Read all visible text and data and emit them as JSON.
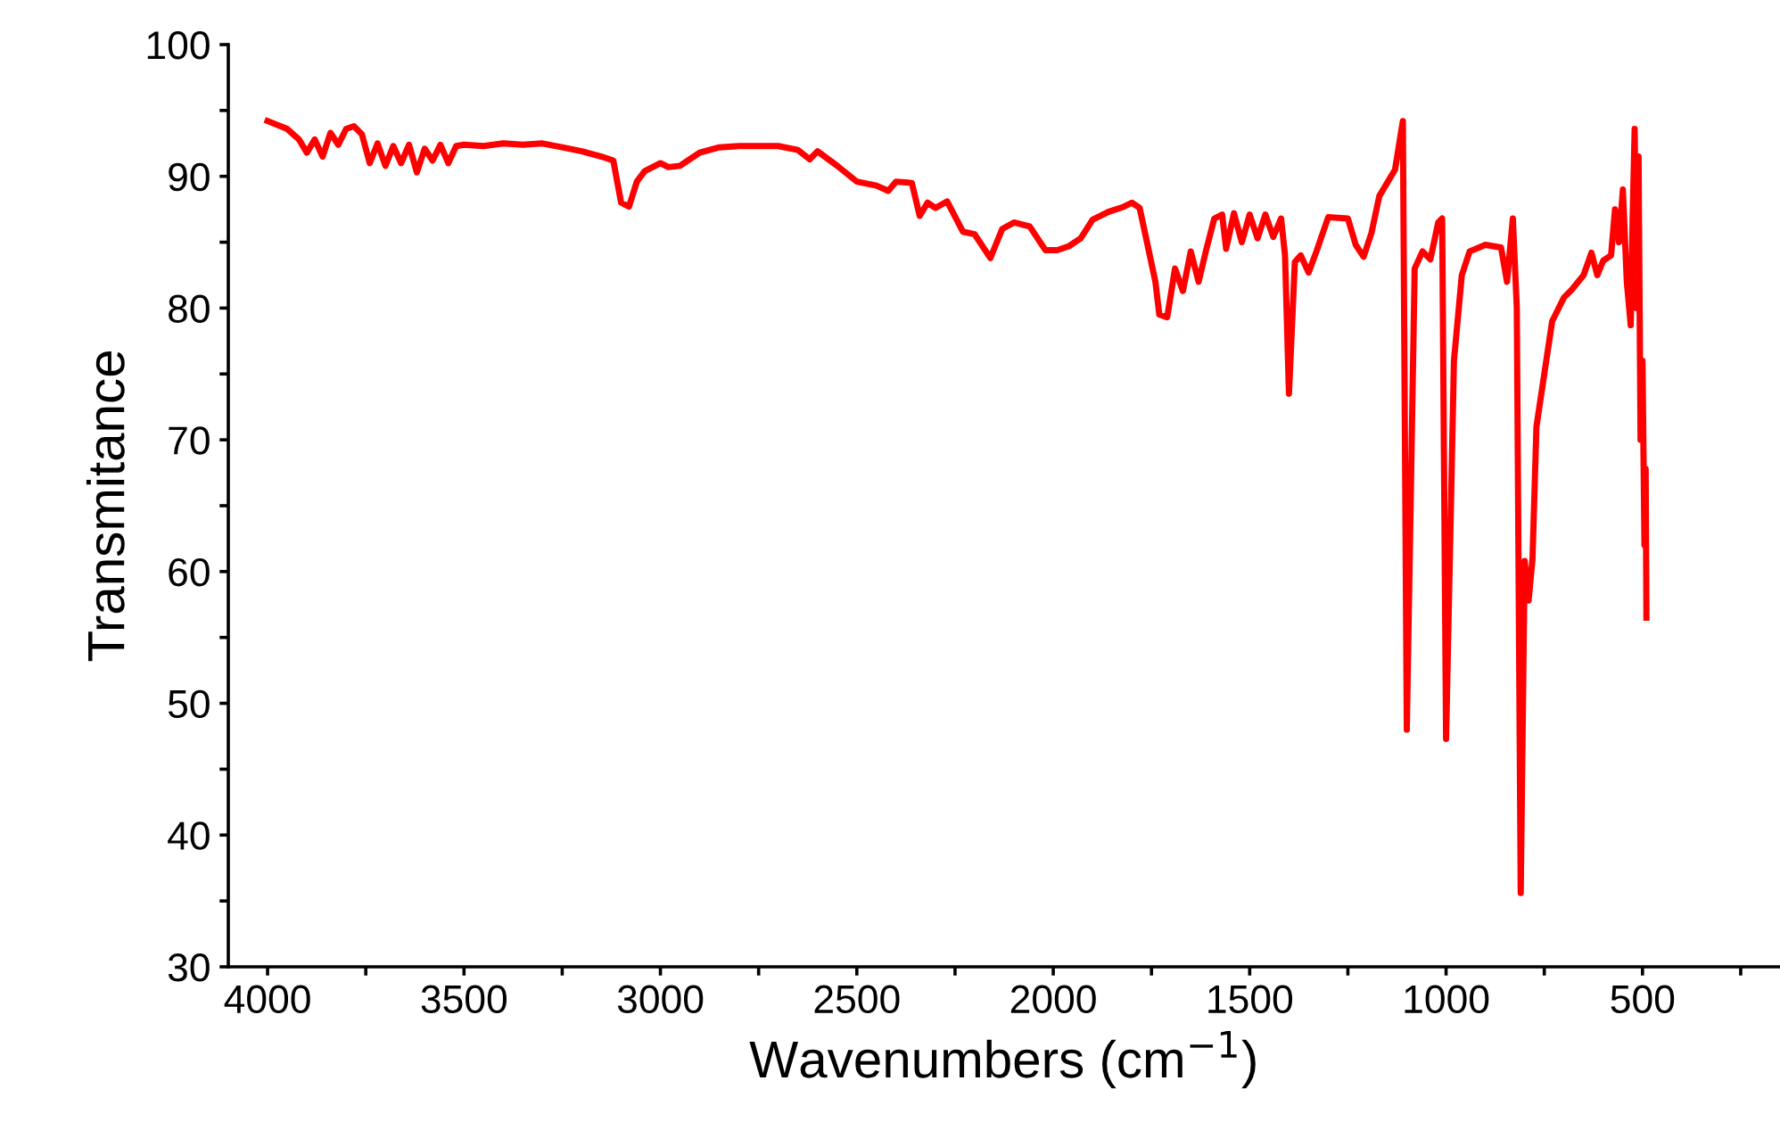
{
  "chart_data": {
    "type": "line",
    "xlabel": "Wavenumbers (cm$^{−1}$)",
    "ylabel": "Transmitance",
    "xlim": [
      4100,
      150
    ],
    "ylim": [
      30,
      100
    ],
    "xticks": [
      4000,
      {
        "value": 3750,
        "label": null
      },
      3500,
      {
        "value": 3250,
        "label": null
      },
      3000,
      {
        "value": 2750,
        "label": null
      },
      2500,
      {
        "value": 2250,
        "label": null
      },
      2000,
      {
        "value": 1750,
        "label": null
      },
      1500,
      {
        "value": 1250,
        "label": null
      },
      1000,
      {
        "value": 750,
        "label": null
      },
      500,
      {
        "value": 250,
        "label": null
      }
    ],
    "yticks": [
      30,
      {
        "value": 35,
        "label": null
      },
      40,
      {
        "value": 45,
        "label": null
      },
      50,
      {
        "value": 55,
        "label": null
      },
      60,
      {
        "value": 65,
        "label": null
      },
      70,
      {
        "value": 75,
        "label": null
      },
      80,
      {
        "value": 85,
        "label": null
      },
      90,
      {
        "value": 95,
        "label": null
      },
      100
    ],
    "grid": false,
    "marker": "none",
    "line_style": "solid",
    "x": [
      4000,
      3950,
      3920,
      3900,
      3880,
      3860,
      3840,
      3820,
      3800,
      3780,
      3760,
      3740,
      3720,
      3700,
      3680,
      3660,
      3640,
      3620,
      3600,
      3580,
      3560,
      3540,
      3520,
      3500,
      3450,
      3400,
      3350,
      3300,
      3250,
      3200,
      3150,
      3120,
      3100,
      3080,
      3060,
      3040,
      3000,
      2980,
      2950,
      2900,
      2850,
      2800,
      2700,
      2650,
      2620,
      2600,
      2550,
      2500,
      2450,
      2420,
      2400,
      2360,
      2340,
      2320,
      2300,
      2270,
      2230,
      2200,
      2160,
      2130,
      2100,
      2060,
      2020,
      1990,
      1960,
      1930,
      1900,
      1860,
      1820,
      1800,
      1780,
      1760,
      1740,
      1730,
      1710,
      1690,
      1670,
      1650,
      1630,
      1610,
      1590,
      1570,
      1560,
      1540,
      1520,
      1500,
      1480,
      1460,
      1440,
      1420,
      1410,
      1400,
      1385,
      1370,
      1350,
      1330,
      1300,
      1250,
      1230,
      1210,
      1190,
      1170,
      1130,
      1110,
      1100,
      1080,
      1060,
      1040,
      1020,
      1010,
      1000,
      980,
      960,
      940,
      900,
      860,
      845,
      830,
      820,
      810,
      800,
      790,
      780,
      770,
      750,
      730,
      700,
      680,
      650,
      630,
      615,
      600,
      580,
      570,
      560,
      550,
      540,
      530,
      525,
      520,
      515,
      510,
      505,
      500,
      495,
      492,
      490
    ],
    "series": [
      {
        "color": "#ff0000",
        "values": [
          94.2,
          93.6,
          92.8,
          91.8,
          92.8,
          91.5,
          93.3,
          92.4,
          93.6,
          93.8,
          93.2,
          91.0,
          92.5,
          90.8,
          92.3,
          91.0,
          92.4,
          90.3,
          92.1,
          91.2,
          92.4,
          91.0,
          92.3,
          92.4,
          92.3,
          92.5,
          92.4,
          92.5,
          92.2,
          91.9,
          91.5,
          91.2,
          88.0,
          87.7,
          89.6,
          90.4,
          91.0,
          90.7,
          90.8,
          91.8,
          92.2,
          92.3,
          92.3,
          92.0,
          91.3,
          91.9,
          90.8,
          89.6,
          89.3,
          88.9,
          89.6,
          89.5,
          87.0,
          88.0,
          87.6,
          88.1,
          85.8,
          85.6,
          83.8,
          86.0,
          86.5,
          86.2,
          84.4,
          84.4,
          84.7,
          85.3,
          86.7,
          87.3,
          87.7,
          88.0,
          87.6,
          84.8,
          82.0,
          79.5,
          79.3,
          83.0,
          81.3,
          84.3,
          82.0,
          84.5,
          86.8,
          87.1,
          84.5,
          87.2,
          85.0,
          87.1,
          85.3,
          87.1,
          85.4,
          86.8,
          84.0,
          73.5,
          83.5,
          84.0,
          82.7,
          84.3,
          86.9,
          86.8,
          84.8,
          83.9,
          85.7,
          88.5,
          90.5,
          94.2,
          48.0,
          83.0,
          84.3,
          83.7,
          86.5,
          86.8,
          47.3,
          76.0,
          82.5,
          84.3,
          84.8,
          84.6,
          82.0,
          86.8,
          80.0,
          35.6,
          60.8,
          57.8,
          61.0,
          71.0,
          75.0,
          79.0,
          80.8,
          81.4,
          82.5,
          84.2,
          82.5,
          83.6,
          84.0,
          87.5,
          85.0,
          89.0,
          82.0,
          78.7,
          87.0,
          93.6,
          80.0,
          91.5,
          70.0,
          76.0,
          62.0,
          67.8,
          56.5
        ]
      }
    ]
  }
}
